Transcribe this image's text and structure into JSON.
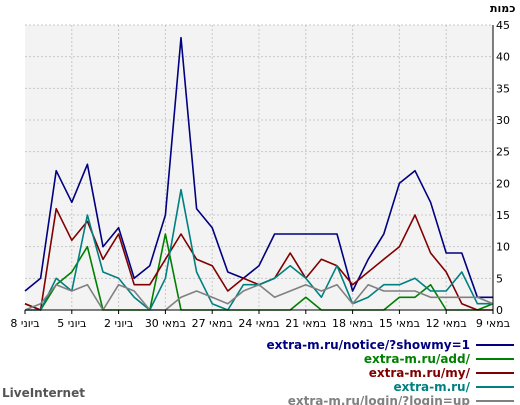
{
  "chart_data": {
    "type": "line",
    "ylabel": "כמות",
    "ylim": [
      0,
      45
    ],
    "yticks": [
      0,
      5,
      10,
      15,
      20,
      25,
      30,
      35,
      40,
      45
    ],
    "grid": true,
    "background": "#f3f3f3",
    "legend_position": "bottom-right",
    "x_tick_labels": [
      "8 ביוני",
      "5 ביוני",
      "2 ביוני",
      "30 במאי",
      "27 במאי",
      "24 במאי",
      "21 במאי",
      "18 במאי",
      "15 במאי",
      "12 במאי",
      "9 במאי"
    ],
    "x_reversed": true,
    "series": [
      {
        "name": "extra-m.ru/notice/?showmy=1",
        "color": "#000080",
        "values": [
          3,
          5,
          22,
          17,
          23,
          10,
          13,
          5,
          7,
          15,
          43,
          16,
          13,
          6,
          5,
          7,
          12,
          12,
          12,
          12,
          12,
          3,
          8,
          12,
          20,
          22,
          17,
          9,
          9,
          2,
          2
        ]
      },
      {
        "name": "extra-m.ru/add/",
        "color": "#008000",
        "values": [
          1,
          0,
          4,
          6,
          10,
          0,
          0,
          0,
          0,
          12,
          0,
          0,
          0,
          0,
          0,
          0,
          0,
          0,
          2,
          0,
          0,
          0,
          0,
          0,
          2,
          2,
          4,
          0,
          0,
          0,
          1
        ]
      },
      {
        "name": "extra-m.ru/my/",
        "color": "#800000",
        "values": [
          1,
          0,
          16,
          11,
          14,
          8,
          12,
          4,
          4,
          8,
          12,
          8,
          7,
          3,
          5,
          4,
          5,
          9,
          5,
          8,
          7,
          4,
          6,
          8,
          10,
          15,
          9,
          6,
          1,
          0,
          0
        ]
      },
      {
        "name": "extra-m.ru/",
        "color": "#008080",
        "values": [
          0,
          0,
          5,
          3,
          15,
          6,
          5,
          2,
          0,
          5,
          19,
          6,
          1,
          0,
          4,
          4,
          5,
          7,
          5,
          2,
          7,
          1,
          2,
          4,
          4,
          5,
          3,
          3,
          6,
          1,
          1
        ]
      },
      {
        "name": "extra-m.ru/login/?login=up",
        "color": "#808080",
        "values": [
          0,
          1,
          4,
          3,
          4,
          0,
          4,
          3,
          0,
          0,
          2,
          3,
          2,
          1,
          3,
          4,
          2,
          3,
          4,
          3,
          4,
          1,
          4,
          3,
          3,
          3,
          2,
          2,
          2,
          2,
          1
        ]
      }
    ]
  },
  "brand": "LiveInternet"
}
